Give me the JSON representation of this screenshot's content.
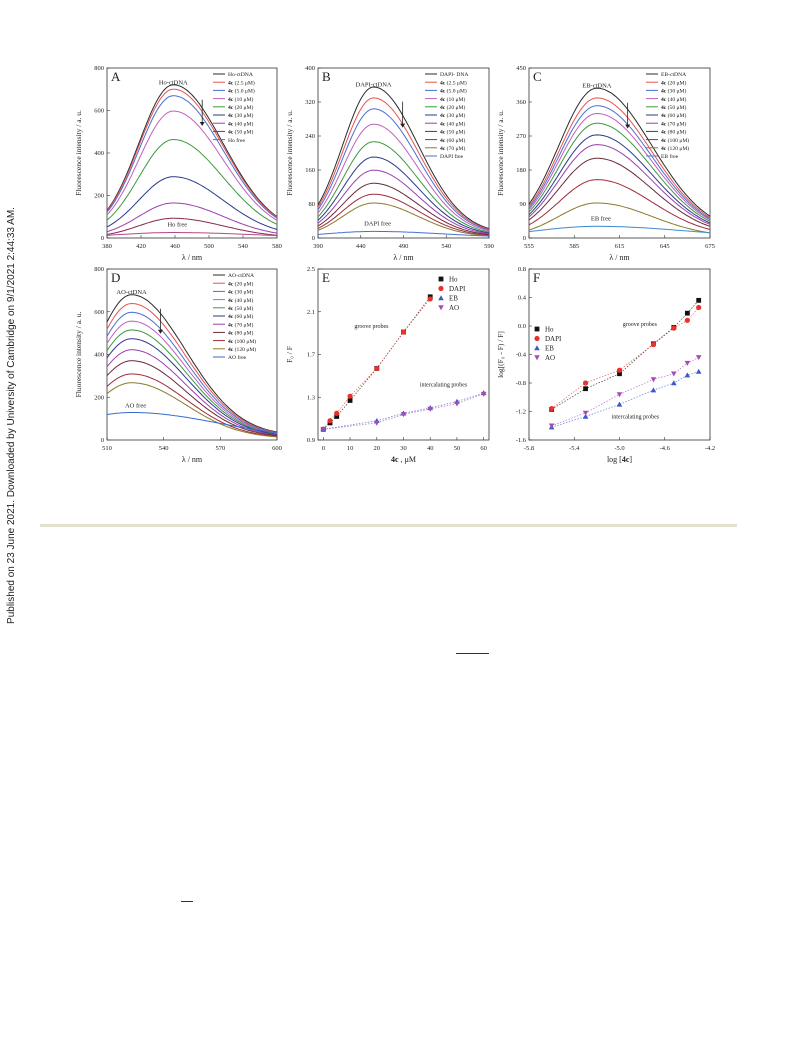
{
  "sidebar_note": "Published on 23 June 2021. Downloaded by University of Cambridge on 9/1/2021 2:44:33 AM.",
  "figure": {
    "panels": [
      {
        "id": "A",
        "ylabel": "Fluorescence intensity / a. u.",
        "xlabel": "λ / nm",
        "peak_label": "Ho-ctDNA",
        "free_label": "Ho free",
        "legend": [
          {
            "pre": "",
            "txt": "Ho-ctDNA",
            "c": "#2b2b2b"
          },
          {
            "pre": "4c",
            "txt": " (2.5 μM)",
            "c": "#e8534e"
          },
          {
            "pre": "4c",
            "txt": " (5.0 μM)",
            "c": "#4a6fd1"
          },
          {
            "pre": "4c",
            "txt": " (10 μM)",
            "c": "#c060c0"
          },
          {
            "pre": "4c",
            "txt": " (20 μM)",
            "c": "#3d9a3d"
          },
          {
            "pre": "4c",
            "txt": " (30 μM)",
            "c": "#2a3a8a"
          },
          {
            "pre": "4c",
            "txt": " (40 μM)",
            "c": "#9a3fb0"
          },
          {
            "pre": "4c",
            "txt": " (50 μM)",
            "c": "#8a2a4a"
          },
          {
            "pre": "",
            "txt": "Ho free",
            "c": "#b04a8a"
          }
        ]
      },
      {
        "id": "B",
        "ylabel": "Fluorescence intensity / a. u.",
        "xlabel": "λ / nm",
        "peak_label": "DAPI-ctDNA",
        "free_label": "DAPI free",
        "legend": [
          {
            "pre": "",
            "txt": "DAPI- DNA",
            "c": "#2b2b2b"
          },
          {
            "pre": "4c",
            "txt": " (2.5 μM)",
            "c": "#e8534e"
          },
          {
            "pre": "4c",
            "txt": " (5.0 μM)",
            "c": "#4a6fd1"
          },
          {
            "pre": "4c",
            "txt": " (10 μM)",
            "c": "#c060c0"
          },
          {
            "pre": "4c",
            "txt": " (20 μM)",
            "c": "#3d9a3d"
          },
          {
            "pre": "4c",
            "txt": " (30 μM)",
            "c": "#2a3a8a"
          },
          {
            "pre": "4c",
            "txt": " (40 μM)",
            "c": "#9a3fb0"
          },
          {
            "pre": "4c",
            "txt": " (50 μM)",
            "c": "#6a2a3a"
          },
          {
            "pre": "4c",
            "txt": " (60 μM)",
            "c": "#a02a3a"
          },
          {
            "pre": "4c",
            "txt": " (70 μM)",
            "c": "#8a7a2a"
          },
          {
            "pre": "",
            "txt": "DAPI free",
            "c": "#4a6fd1"
          }
        ]
      },
      {
        "id": "C",
        "ylabel": "Fluorescence intensity / a. u.",
        "xlabel": "λ / nm",
        "peak_label": "EB-ctDNA",
        "free_label": "EB free",
        "legend": [
          {
            "pre": "",
            "txt": "EB-ctDNA",
            "c": "#2b2b2b"
          },
          {
            "pre": "4c",
            "txt": " (20 μM)",
            "c": "#e8534e"
          },
          {
            "pre": "4c",
            "txt": " (30 μM)",
            "c": "#4a6fd1"
          },
          {
            "pre": "4c",
            "txt": " (40 μM)",
            "c": "#c060c0"
          },
          {
            "pre": "4c",
            "txt": " (50 μM)",
            "c": "#3d9a3d"
          },
          {
            "pre": "4c",
            "txt": " (60 μM)",
            "c": "#2a3a8a"
          },
          {
            "pre": "4c",
            "txt": " (70 μM)",
            "c": "#9a3fb0"
          },
          {
            "pre": "4c",
            "txt": " (80 μM)",
            "c": "#6a2a3a"
          },
          {
            "pre": "4c",
            "txt": " (100 μM)",
            "c": "#a02a3a"
          },
          {
            "pre": "4c",
            "txt": " (120 μM)",
            "c": "#8a7a2a"
          },
          {
            "pre": "",
            "txt": "EB free",
            "c": "#3a8ad0"
          }
        ]
      },
      {
        "id": "D",
        "ylabel": "Fluorescence intensity / a. u.",
        "xlabel": "λ / nm",
        "peak_label": "AO-ctDNA",
        "free_label": "AO free",
        "legend": [
          {
            "pre": "",
            "txt": "AO-ctDNA",
            "c": "#2b2b2b"
          },
          {
            "pre": "4c",
            "txt": " (20 μM)",
            "c": "#e8534e"
          },
          {
            "pre": "4c",
            "txt": " (30 μM)",
            "c": "#4a6fd1"
          },
          {
            "pre": "4c",
            "txt": " (40 μM)",
            "c": "#c060c0"
          },
          {
            "pre": "4c",
            "txt": " (50 μM)",
            "c": "#3d9a3d"
          },
          {
            "pre": "4c",
            "txt": " (60 μM)",
            "c": "#2a3a8a"
          },
          {
            "pre": "4c",
            "txt": " (70 μM)",
            "c": "#9a3fb0"
          },
          {
            "pre": "4c",
            "txt": " (80 μM)",
            "c": "#6a2a3a"
          },
          {
            "pre": "4c",
            "txt": " (100 μM)",
            "c": "#a02a3a"
          },
          {
            "pre": "4c",
            "txt": " (120 μM)",
            "c": "#8a7a2a"
          },
          {
            "pre": "",
            "txt": "AO free",
            "c": "#3a6ad0"
          }
        ]
      },
      {
        "id": "E",
        "ylabel": "F₀ / F",
        "xlabel_bold": "4c",
        "xlabel_rest": " , μM",
        "groove_label": "groove probes",
        "intercal_label": "intercalating probes",
        "legend": [
          "Ho",
          "DAPI",
          "EB",
          "AO"
        ]
      },
      {
        "id": "F",
        "ylabel": "log[(F₀ - F) / F]",
        "xlabel_pre": "log [",
        "xlabel_bold": "4c",
        "xlabel_post": "]",
        "groove_label": "groove probes",
        "intercal_label": "intercalating probes",
        "legend": [
          "Ho",
          "DAPI",
          "EB",
          "AO"
        ]
      }
    ]
  },
  "chart_data": [
    {
      "type": "line",
      "panel": "A",
      "xlim": [
        380,
        580
      ],
      "ylim": [
        0,
        800
      ],
      "xticks": [
        380,
        420,
        460,
        500,
        540,
        580
      ],
      "yticks": [
        0,
        200,
        400,
        600,
        800
      ],
      "peak_x": 458,
      "width": 45,
      "peaks": [
        700,
        680,
        650,
        580,
        450,
        280,
        160,
        90
      ],
      "free_peak": 25
    },
    {
      "type": "line",
      "panel": "B",
      "xlim": [
        390,
        590
      ],
      "ylim": [
        0,
        400
      ],
      "xticks": [
        390,
        440,
        490,
        540,
        590
      ],
      "yticks": [
        0,
        80,
        160,
        240,
        320,
        400
      ],
      "peak_x": 455,
      "width": 40,
      "peaks": [
        345,
        320,
        295,
        260,
        220,
        185,
        155,
        125,
        100,
        80
      ],
      "free_peak": 15
    },
    {
      "type": "line",
      "panel": "C",
      "xlim": [
        555,
        675
      ],
      "ylim": [
        0,
        450
      ],
      "xticks": [
        555,
        585,
        615,
        645,
        675
      ],
      "yticks": [
        0,
        90,
        180,
        270,
        360,
        450
      ],
      "peak_x": 600,
      "width": 28,
      "peaks": [
        385,
        360,
        340,
        320,
        295,
        265,
        240,
        205,
        150,
        90
      ],
      "free_peak": 30
    },
    {
      "type": "line",
      "panel": "D",
      "xlim": [
        510,
        600
      ],
      "ylim": [
        0,
        800
      ],
      "xticks": [
        510,
        540,
        570,
        600
      ],
      "yticks": [
        0,
        200,
        400,
        600,
        800
      ],
      "peak_x": 523,
      "width": 22,
      "peaks": [
        660,
        620,
        580,
        540,
        500,
        460,
        410,
        360,
        300,
        260
      ],
      "free_peak": 125
    },
    {
      "type": "scatter",
      "panel": "E",
      "xlim": [
        -2,
        62
      ],
      "ylim": [
        0.9,
        2.5
      ],
      "xticks": [
        0,
        10,
        20,
        30,
        40,
        50,
        60
      ],
      "yticks": [
        0.9,
        1.3,
        1.7,
        2.1,
        2.5
      ],
      "series": [
        {
          "name": "Ho",
          "x": [
            0,
            2.5,
            5,
            10,
            20,
            30,
            40
          ],
          "y": [
            1.0,
            1.06,
            1.12,
            1.27,
            1.57,
            1.91,
            2.24
          ]
        },
        {
          "name": "DAPI",
          "x": [
            0,
            2.5,
            5,
            10,
            20,
            30,
            40
          ],
          "y": [
            1.0,
            1.08,
            1.15,
            1.31,
            1.57,
            1.91,
            2.22
          ]
        },
        {
          "name": "EB",
          "x": [
            0,
            20,
            30,
            40,
            50,
            60
          ],
          "y": [
            1.0,
            1.08,
            1.15,
            1.2,
            1.26,
            1.34
          ]
        },
        {
          "name": "AO",
          "x": [
            0,
            20,
            30,
            40,
            50,
            60
          ],
          "y": [
            1.0,
            1.06,
            1.14,
            1.19,
            1.24,
            1.33
          ]
        }
      ]
    },
    {
      "type": "scatter",
      "panel": "F",
      "xlim": [
        -5.8,
        -4.2
      ],
      "ylim": [
        -1.6,
        0.8
      ],
      "xticks": [
        -5.8,
        -5.4,
        -5.0,
        -4.6,
        -4.2
      ],
      "yticks": [
        -1.6,
        -1.2,
        -0.8,
        -0.4,
        0.0,
        0.4,
        0.8
      ],
      "series": [
        {
          "name": "Ho",
          "x": [
            -5.6,
            -5.3,
            -5.0,
            -4.7,
            -4.52,
            -4.4,
            -4.3
          ],
          "y": [
            -1.17,
            -0.88,
            -0.67,
            -0.25,
            -0.02,
            0.18,
            0.36
          ]
        },
        {
          "name": "DAPI",
          "x": [
            -5.6,
            -5.3,
            -5.0,
            -4.7,
            -4.52,
            -4.4,
            -4.3
          ],
          "y": [
            -1.16,
            -0.8,
            -0.62,
            -0.26,
            -0.03,
            0.08,
            0.26
          ]
        },
        {
          "name": "EB",
          "x": [
            -5.6,
            -5.3,
            -5.0,
            -4.7,
            -4.52,
            -4.4,
            -4.3
          ],
          "y": [
            -1.42,
            -1.27,
            -1.1,
            -0.9,
            -0.8,
            -0.69,
            -0.64
          ]
        },
        {
          "name": "AO",
          "x": [
            -5.6,
            -5.3,
            -5.0,
            -4.7,
            -4.52,
            -4.4,
            -4.3
          ],
          "y": [
            -1.4,
            -1.22,
            -0.96,
            -0.75,
            -0.67,
            -0.52,
            -0.44
          ]
        }
      ]
    }
  ]
}
